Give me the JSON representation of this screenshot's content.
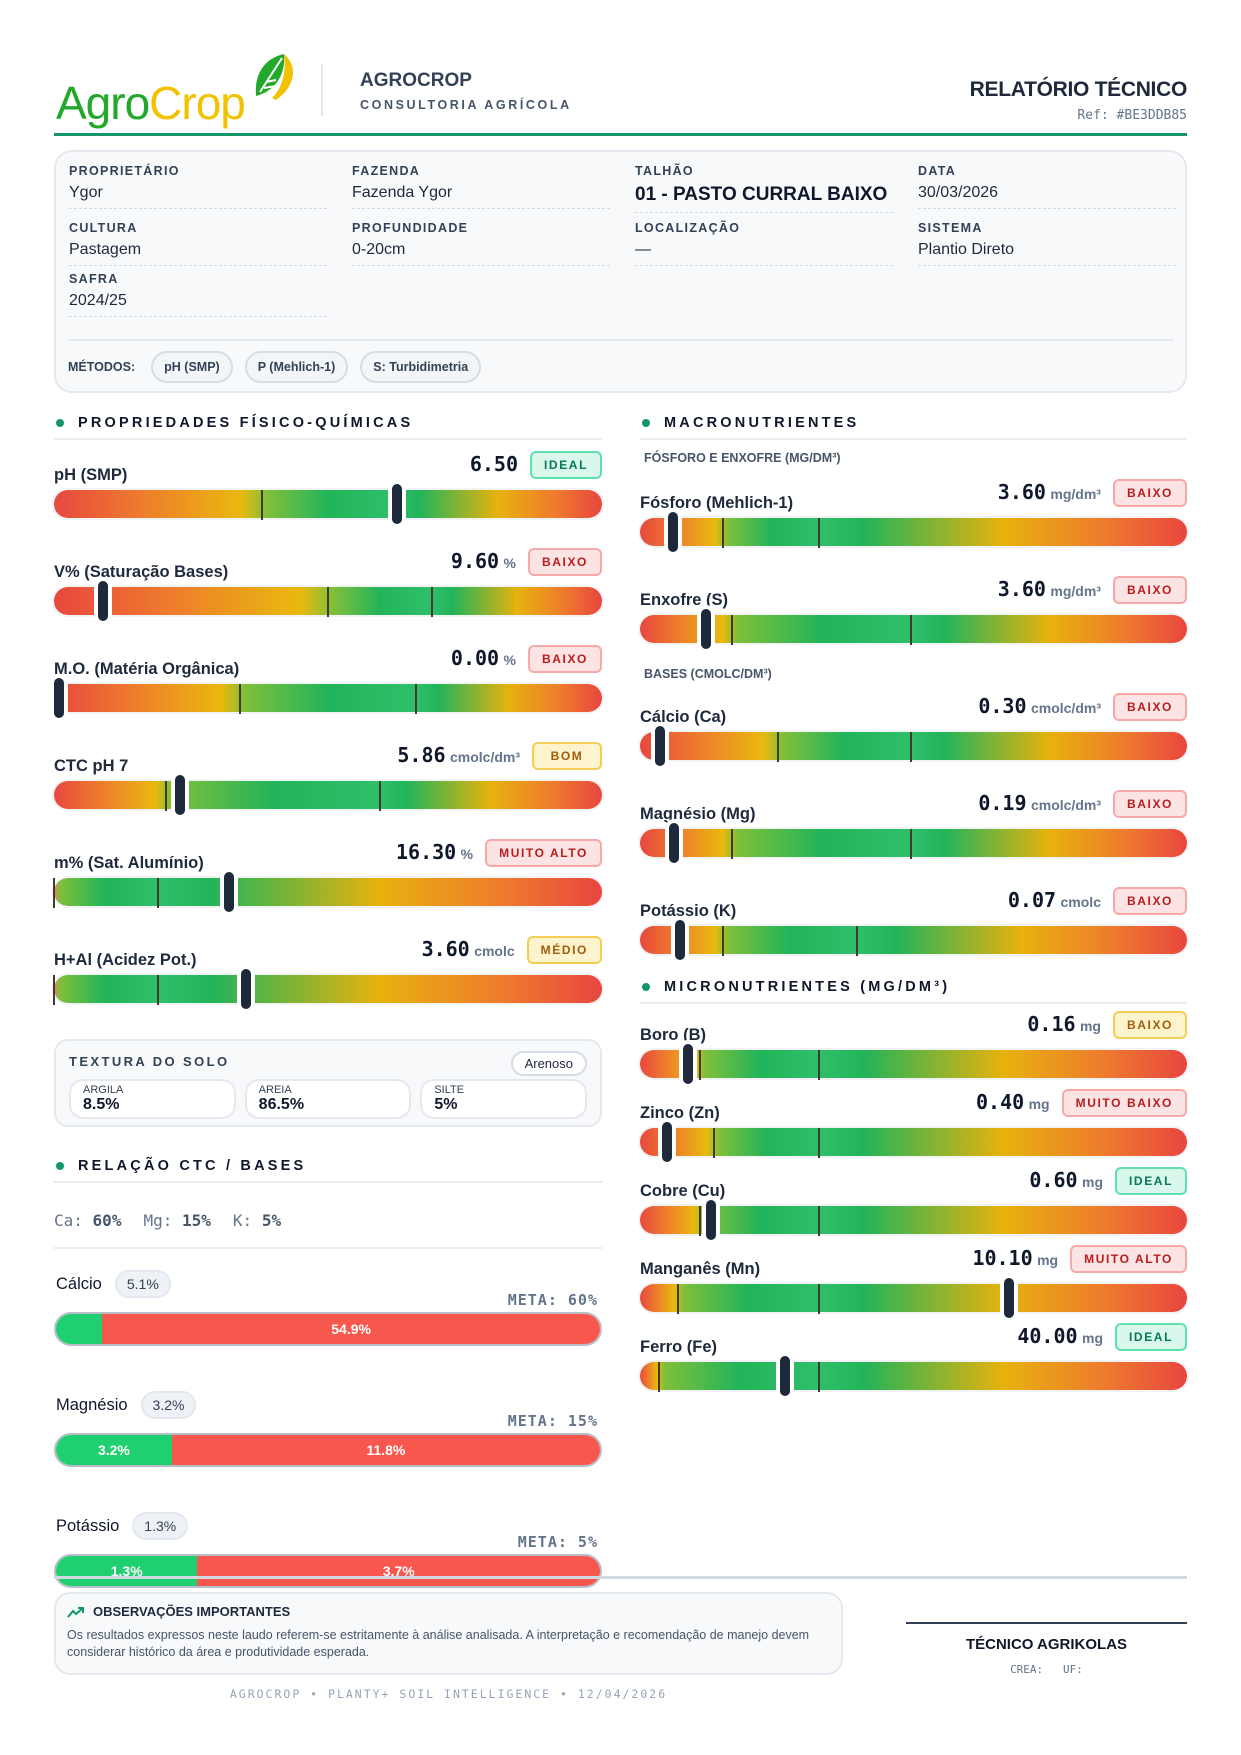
{
  "colors": {
    "accent": "#15966a",
    "logo_green": "#22a82a",
    "logo_yellow": "#f2c200"
  },
  "badge_styles": {
    "green": {
      "bg": "#d9f7ea",
      "border": "#5fe0ae",
      "text": "#047857"
    },
    "red": {
      "bg": "#fde4e4",
      "border": "#f6a9a9",
      "text": "#b91c1c"
    },
    "yellow": {
      "bg": "#fdf3cc",
      "border": "#f4ce55",
      "text": "#a35c07"
    }
  },
  "header": {
    "logo_agro": "Agro",
    "logo_crop": "Crop",
    "brand": "AGROCROP",
    "tagline": "CONSULTORIA AGRÍCOLA",
    "report_title": "RELATÓRIO TÉCNICO",
    "ref": "Ref: #BE3DDB85"
  },
  "info": {
    "fields": [
      {
        "label": "PROPRIETÁRIO",
        "value": "Ygor"
      },
      {
        "label": "FAZENDA",
        "value": "Fazenda Ygor"
      },
      {
        "label": "TALHÃO",
        "value": "01 - PASTO CURRAL BAIXO"
      },
      {
        "label": "DATA",
        "value": "30/03/2026"
      },
      {
        "label": "CULTURA",
        "value": "Pastagem"
      },
      {
        "label": "PROFUNDIDADE",
        "value": "0-20cm"
      },
      {
        "label": "LOCALIZAÇÃO",
        "value": "—"
      },
      {
        "label": "SISTEMA",
        "value": "Plantio Direto"
      },
      {
        "label": "SAFRA",
        "value": "2024/25"
      }
    ],
    "methods_label": "MÉTODOS:",
    "methods": [
      "pH (SMP)",
      "P (Mehlich-1)",
      "S: Turbidimetria"
    ]
  },
  "physchem": {
    "title": "PROPRIEDADES FÍSICO-QUÍMICAS",
    "gauges": [
      {
        "label": "pH (SMP)",
        "value": "6.50",
        "unit": "",
        "badge": "IDEAL",
        "badge_style": "green",
        "marker": 0.625,
        "ticks": [
          0.38,
          0.62
        ]
      },
      {
        "label": "V% (Saturação Bases)",
        "value": "9.60",
        "unit": "%",
        "badge": "BAIXO",
        "badge_style": "red",
        "marker": 0.09,
        "ticks": [
          0.5,
          0.69
        ]
      },
      {
        "label": "M.O. (Matéria Orgânica)",
        "value": "0.00",
        "unit": "%",
        "badge": "BAIXO",
        "badge_style": "red",
        "marker": 0.0,
        "ticks": [
          0.34,
          0.66
        ]
      },
      {
        "label": "CTC pH 7",
        "value": "5.86",
        "unit": "cmolc/dm³",
        "badge": "BOM",
        "badge_style": "yellow",
        "marker": 0.23,
        "ticks": [
          0.205,
          0.595
        ]
      },
      {
        "label": "m% (Sat. Alumínio)",
        "value": "16.30",
        "unit": "%",
        "badge": "MUITO ALTO",
        "badge_style": "red",
        "marker": 0.32,
        "ticks": [
          0.0,
          0.19
        ]
      },
      {
        "label": "H+Al (Acidez Pot.)",
        "value": "3.60",
        "unit": "cmolc",
        "badge": "MÉDIO",
        "badge_style": "yellow",
        "marker": 0.35,
        "ticks": [
          0.0,
          0.19
        ]
      }
    ]
  },
  "texture": {
    "title": "TEXTURA DO SOLO",
    "class": "Arenoso",
    "items": [
      {
        "label": "ARGILA",
        "value": "8.5%"
      },
      {
        "label": "AREIA",
        "value": "86.5%"
      },
      {
        "label": "SILTE",
        "value": "5%"
      }
    ]
  },
  "relation": {
    "title": "RELAÇÃO CTC / BASES",
    "targets": [
      {
        "k": "Ca:",
        "v": "60%"
      },
      {
        "k": "Mg:",
        "v": "15%"
      },
      {
        "k": "K:",
        "v": "5%"
      }
    ],
    "rows": [
      {
        "name": "Cálcio",
        "current": "5.1%",
        "meta": "META: 60%",
        "fraction": 0.085,
        "green_label": "",
        "red_label": "54.9%"
      },
      {
        "name": "Magnésio",
        "current": "3.2%",
        "meta": "META: 15%",
        "fraction": 0.213,
        "green_label": "3.2%",
        "red_label": "11.8%"
      },
      {
        "name": "Potássio",
        "current": "1.3%",
        "meta": "META: 5%",
        "fraction": 0.26,
        "green_label": "1.3%",
        "red_label": "3.7%"
      }
    ]
  },
  "macro": {
    "title": "MACRONUTRIENTES",
    "sub1": "FÓSFORO E ENXOFRE (MG/DM³)",
    "ps": [
      {
        "label": "Fósforo (Mehlich-1)",
        "value": "3.60",
        "unit": "mg/dm³",
        "badge": "BAIXO",
        "badge_style": "red",
        "marker": 0.06,
        "ticks": [
          0.152,
          0.328
        ]
      },
      {
        "label": "Enxofre (S)",
        "value": "3.60",
        "unit": "mg/dm³",
        "badge": "BAIXO",
        "badge_style": "red",
        "marker": 0.12,
        "ticks": [
          0.168,
          0.496
        ]
      }
    ],
    "sub2": "BASES (CMOLC/DM³)",
    "bases": [
      {
        "label": "Cálcio (Ca)",
        "value": "0.30",
        "unit": "cmolc/dm³",
        "badge": "BAIXO",
        "badge_style": "red",
        "marker": 0.037,
        "ticks": [
          0.252,
          0.496
        ]
      },
      {
        "label": "Magnésio (Mg)",
        "value": "0.19",
        "unit": "cmolc/dm³",
        "badge": "BAIXO",
        "badge_style": "red",
        "marker": 0.063,
        "ticks": [
          0.168,
          0.496
        ]
      },
      {
        "label": "Potássio (K)",
        "value": "0.07",
        "unit": "cmolc",
        "badge": "BAIXO",
        "badge_style": "red",
        "marker": 0.073,
        "ticks": [
          0.152,
          0.396
        ]
      }
    ]
  },
  "micro": {
    "title": "MICRONUTRIENTES (MG/DM³)",
    "gauges": [
      {
        "label": "Boro (B)",
        "value": "0.16",
        "unit": "mg",
        "badge": "BAIXO",
        "badge_style": "yellow",
        "marker": 0.088,
        "ticks": [
          0.11,
          0.328
        ]
      },
      {
        "label": "Zinco (Zn)",
        "value": "0.40",
        "unit": "mg",
        "badge": "MUITO BAIXO",
        "badge_style": "red",
        "marker": 0.05,
        "ticks": [
          0.135,
          0.328
        ]
      },
      {
        "label": "Cobre (Cu)",
        "value": "0.60",
        "unit": "mg",
        "badge": "IDEAL",
        "badge_style": "green",
        "marker": 0.13,
        "ticks": [
          0.11,
          0.328
        ]
      },
      {
        "label": "Manganês (Mn)",
        "value": "10.10",
        "unit": "mg",
        "badge": "MUITO ALTO",
        "badge_style": "red",
        "marker": 0.675,
        "ticks": [
          0.07,
          0.328
        ]
      },
      {
        "label": "Ferro (Fe)",
        "value": "40.00",
        "unit": "mg",
        "badge": "IDEAL",
        "badge_style": "green",
        "marker": 0.265,
        "ticks": [
          0.035,
          0.328
        ]
      }
    ]
  },
  "footer": {
    "obs_title": "OBSERVAÇÕES IMPORTANTES",
    "obs_text": "Os resultados expressos neste laudo referem-se estritamente à análise analisada. A interpretação e recomendação de manejo devem considerar histórico da área e produtividade esperada.",
    "signer": "TÉCNICO AGRIKOLAS",
    "crea": "CREA:   UF:",
    "credits": "AGROCROP • PLANTY+ SOIL INTELLIGENCE • 12/04/2026"
  }
}
